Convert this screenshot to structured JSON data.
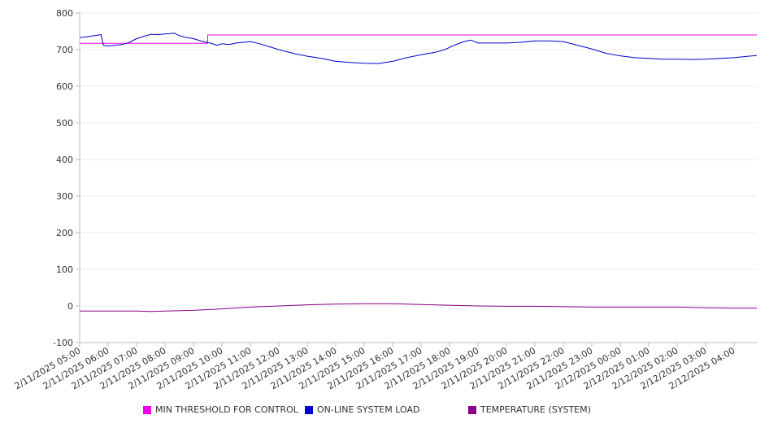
{
  "chart_data": {
    "type": "line",
    "title": "",
    "xlabel": "",
    "ylabel": "",
    "ylim": [
      -100,
      800
    ],
    "yticks": [
      800,
      700,
      600,
      500,
      400,
      300,
      200,
      100,
      0,
      -100
    ],
    "xlim": [
      "2/11/2025 05:00",
      "2/12/2025 04:48"
    ],
    "xtick_labels": [
      "2/11/2025 05:00",
      "2/11/2025 06:00",
      "2/11/2025 07:00",
      "2/11/2025 08:00",
      "2/11/2025 09:00",
      "2/11/2025 10:00",
      "2/11/2025 11:00",
      "2/11/2025 12:00",
      "2/11/2025 13:00",
      "2/11/2025 14:00",
      "2/11/2025 15:00",
      "2/11/2025 16:00",
      "2/11/2025 17:00",
      "2/11/2025 18:00",
      "2/11/2025 19:00",
      "2/11/2025 20:00",
      "2/11/2025 21:00",
      "2/11/2025 22:00",
      "2/11/2025 23:00",
      "2/12/2025 00:00",
      "2/12/2025 01:00",
      "2/12/2025 02:00",
      "2/12/2025 03:00",
      "2/12/2025 04:00"
    ],
    "grid": true,
    "legend_position": "bottom",
    "series": [
      {
        "name": "MIN THRESHOLD FOR CONTROL",
        "color": "#ee00ee",
        "step": true,
        "points": [
          [
            "2/11/2025 05:00",
            717
          ],
          [
            "2/11/2025 09:30",
            717
          ],
          [
            "2/11/2025 09:30",
            740
          ],
          [
            "2/12/2025 04:48",
            740
          ]
        ]
      },
      {
        "name": "ON-LINE SYSTEM LOAD",
        "color": "#0000cc",
        "points": [
          [
            "2/11/2025 05:00",
            733
          ],
          [
            "2/11/2025 05:15",
            735
          ],
          [
            "2/11/2025 05:30",
            738
          ],
          [
            "2/11/2025 05:45",
            741
          ],
          [
            "2/11/2025 05:50",
            712
          ],
          [
            "2/11/2025 06:00",
            710
          ],
          [
            "2/11/2025 06:30",
            714
          ],
          [
            "2/11/2025 06:45",
            720
          ],
          [
            "2/11/2025 07:00",
            730
          ],
          [
            "2/11/2025 07:30",
            742
          ],
          [
            "2/11/2025 07:45",
            741
          ],
          [
            "2/11/2025 08:00",
            743
          ],
          [
            "2/11/2025 08:20",
            745
          ],
          [
            "2/11/2025 08:30",
            738
          ],
          [
            "2/11/2025 08:45",
            733
          ],
          [
            "2/11/2025 09:00",
            730
          ],
          [
            "2/11/2025 09:20",
            722
          ],
          [
            "2/11/2025 09:35",
            718
          ],
          [
            "2/11/2025 09:50",
            712
          ],
          [
            "2/11/2025 10:00",
            716
          ],
          [
            "2/11/2025 10:15",
            714
          ],
          [
            "2/11/2025 10:30",
            718
          ],
          [
            "2/11/2025 10:45",
            720
          ],
          [
            "2/11/2025 11:00",
            722
          ],
          [
            "2/11/2025 11:20",
            716
          ],
          [
            "2/11/2025 11:40",
            708
          ],
          [
            "2/11/2025 12:00",
            700
          ],
          [
            "2/11/2025 12:30",
            690
          ],
          [
            "2/11/2025 13:00",
            682
          ],
          [
            "2/11/2025 13:30",
            676
          ],
          [
            "2/11/2025 14:00",
            668
          ],
          [
            "2/11/2025 14:30",
            665
          ],
          [
            "2/11/2025 15:00",
            663
          ],
          [
            "2/11/2025 15:30",
            662
          ],
          [
            "2/11/2025 16:00",
            668
          ],
          [
            "2/11/2025 16:30",
            678
          ],
          [
            "2/11/2025 17:00",
            686
          ],
          [
            "2/11/2025 17:30",
            693
          ],
          [
            "2/11/2025 17:50",
            700
          ],
          [
            "2/11/2025 18:10",
            712
          ],
          [
            "2/11/2025 18:30",
            722
          ],
          [
            "2/11/2025 18:45",
            726
          ],
          [
            "2/11/2025 19:00",
            718
          ],
          [
            "2/11/2025 19:30",
            718
          ],
          [
            "2/11/2025 20:00",
            718
          ],
          [
            "2/11/2025 20:30",
            720
          ],
          [
            "2/11/2025 21:00",
            724
          ],
          [
            "2/11/2025 21:30",
            724
          ],
          [
            "2/11/2025 22:00",
            722
          ],
          [
            "2/11/2025 22:30",
            712
          ],
          [
            "2/11/2025 23:00",
            702
          ],
          [
            "2/11/2025 23:30",
            690
          ],
          [
            "2/12/2025 00:00",
            683
          ],
          [
            "2/12/2025 00:30",
            678
          ],
          [
            "2/12/2025 01:00",
            676
          ],
          [
            "2/12/2025 01:30",
            674
          ],
          [
            "2/12/2025 02:00",
            674
          ],
          [
            "2/12/2025 02:30",
            673
          ],
          [
            "2/12/2025 03:00",
            674
          ],
          [
            "2/12/2025 03:30",
            676
          ],
          [
            "2/12/2025 04:00",
            678
          ],
          [
            "2/12/2025 04:30",
            682
          ],
          [
            "2/12/2025 04:48",
            684
          ]
        ]
      },
      {
        "name": "TEMPERATURE (SYSTEM)",
        "color": "#880088",
        "points": [
          [
            "2/11/2025 05:00",
            -14
          ],
          [
            "2/11/2025 06:00",
            -14
          ],
          [
            "2/11/2025 07:00",
            -14
          ],
          [
            "2/11/2025 07:30",
            -15
          ],
          [
            "2/11/2025 08:00",
            -14
          ],
          [
            "2/11/2025 09:00",
            -12
          ],
          [
            "2/11/2025 10:00",
            -8
          ],
          [
            "2/11/2025 11:00",
            -3
          ],
          [
            "2/11/2025 12:00",
            0
          ],
          [
            "2/11/2025 13:00",
            3
          ],
          [
            "2/11/2025 14:00",
            5
          ],
          [
            "2/11/2025 15:00",
            6
          ],
          [
            "2/11/2025 16:00",
            6
          ],
          [
            "2/11/2025 17:00",
            4
          ],
          [
            "2/11/2025 18:00",
            2
          ],
          [
            "2/11/2025 19:00",
            0
          ],
          [
            "2/11/2025 20:00",
            -1
          ],
          [
            "2/11/2025 21:00",
            -1
          ],
          [
            "2/11/2025 22:00",
            -2
          ],
          [
            "2/11/2025 23:00",
            -3
          ],
          [
            "2/12/2025 00:00",
            -3
          ],
          [
            "2/12/2025 01:00",
            -3
          ],
          [
            "2/12/2025 02:00",
            -3
          ],
          [
            "2/12/2025 03:00",
            -5
          ],
          [
            "2/12/2025 04:00",
            -6
          ],
          [
            "2/12/2025 04:48",
            -6
          ]
        ]
      }
    ]
  }
}
